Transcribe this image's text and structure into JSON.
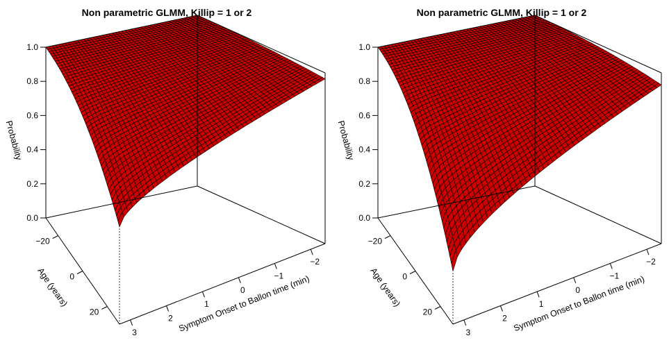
{
  "chart_data": [
    {
      "type": "surface3d",
      "title": "Non parametric GLMM, Killip = 1 or 2",
      "xlabel": "Symptom Onset to Ballon time (min)",
      "ylabel": "Age (years)",
      "zlabel": "Probability",
      "x_ticks": [
        "3",
        "2",
        "1",
        "0",
        "−1",
        "−2"
      ],
      "y_ticks": [
        "−20",
        "0",
        "20"
      ],
      "z_ticks": [
        "0.0",
        "0.2",
        "0.4",
        "0.6",
        "0.8",
        "1.0"
      ],
      "xlim": [
        3.3,
        -2.4
      ],
      "ylim": [
        -30,
        30
      ],
      "zlim": [
        0,
        1
      ],
      "surface_color": "#cc0000",
      "mesh_color": "#000000",
      "corner_values": {
        "x_min_age_min": 1.0,
        "x_max_age_min": 1.0,
        "x_min_age_max": 0.57,
        "x_max_age_max": 0.965
      }
    },
    {
      "type": "surface3d",
      "title": "Non parametric GLMM, Killip = 1 or 2",
      "xlabel": "Symptom Onset to Ballon time (min)",
      "ylabel": "Age (years)",
      "zlabel": "Probability",
      "x_ticks": [
        "3",
        "2",
        "1",
        "0",
        "−1",
        "−2"
      ],
      "y_ticks": [
        "−20",
        "0",
        "20"
      ],
      "z_ticks": [
        "0.0",
        "0.2",
        "0.4",
        "0.6",
        "0.8",
        "1.0"
      ],
      "xlim": [
        3.3,
        -2.4
      ],
      "ylim": [
        -30,
        30
      ],
      "zlim": [
        0,
        1
      ],
      "surface_color": "#cc0000",
      "mesh_color": "#000000",
      "corner_values": {
        "x_min_age_min": 1.0,
        "x_max_age_min": 1.0,
        "x_min_age_max": 0.31,
        "x_max_age_max": 0.93
      }
    }
  ]
}
